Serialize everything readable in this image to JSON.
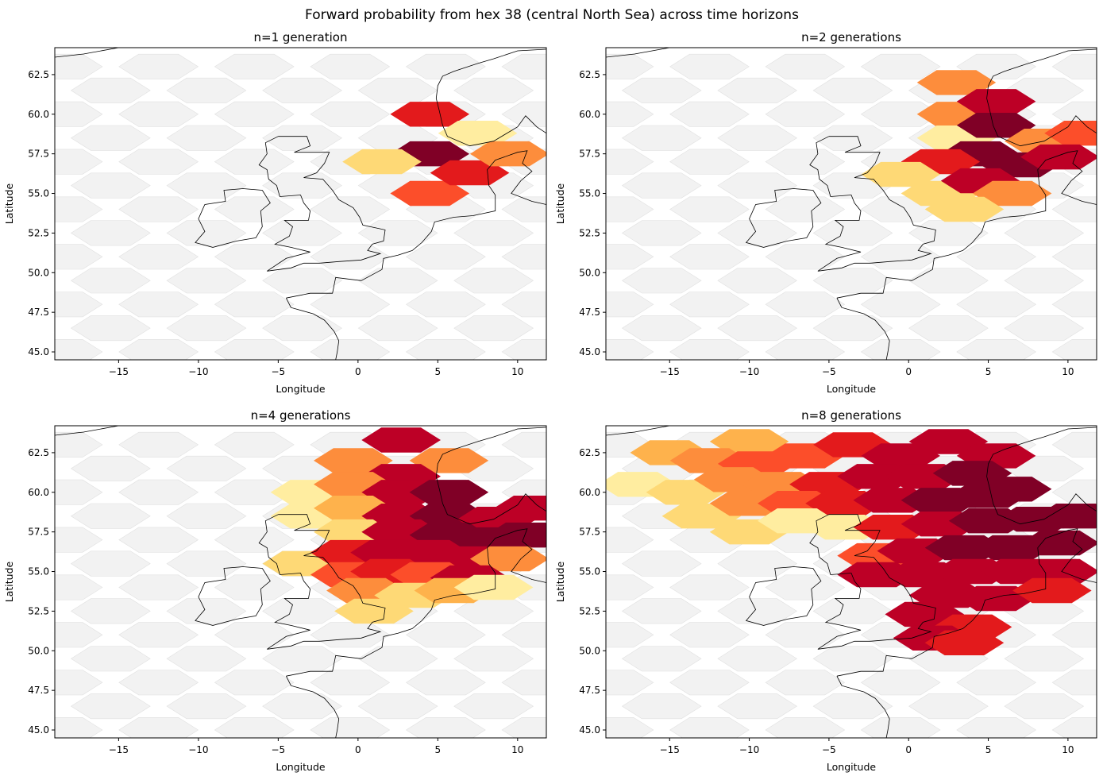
{
  "figure": {
    "title": "Forward probability from hex 38 (central North Sea) across time horizons",
    "colors": {
      "background_hex": "#f2f2f2",
      "background_edge": "#e0e0e0",
      "coast": "#000000",
      "colormap": [
        "#ffffcc",
        "#ffeda0",
        "#fed976",
        "#feb24c",
        "#fd8d3c",
        "#fc4e2a",
        "#e31a1c",
        "#bd0026",
        "#800026"
      ]
    }
  },
  "chart_data": [
    {
      "type": "heatmap",
      "title": "n=1 generation",
      "xlabel": "Longitude",
      "ylabel": "Latitude",
      "xlim": [
        -19,
        11.8
      ],
      "ylim": [
        44.5,
        64.2
      ],
      "xticks": [
        "−15",
        "−10",
        "−5",
        "0",
        "5",
        "10"
      ],
      "yticks": [
        "45.0",
        "47.5",
        "50.0",
        "52.5",
        "55.0",
        "57.5",
        "60.0",
        "62.5"
      ],
      "cells": [
        {
          "lon": 4.5,
          "lat": 57.5,
          "p": 1.0
        },
        {
          "lon": 4.5,
          "lat": 60.0,
          "p": 0.8
        },
        {
          "lon": 7.5,
          "lat": 58.8,
          "p": 0.12
        },
        {
          "lon": 1.5,
          "lat": 57.0,
          "p": 0.3
        },
        {
          "lon": 4.5,
          "lat": 55.0,
          "p": 0.6
        },
        {
          "lon": 7.0,
          "lat": 56.3,
          "p": 0.75
        },
        {
          "lon": 9.5,
          "lat": 57.5,
          "p": 0.5
        }
      ]
    },
    {
      "type": "heatmap",
      "title": "n=2 generations",
      "xlabel": "Longitude",
      "ylabel": "Latitude",
      "xlim": [
        -19,
        11.8
      ],
      "ylim": [
        44.5,
        64.2
      ],
      "xticks": [
        "−15",
        "−10",
        "−5",
        "0",
        "5",
        "10"
      ],
      "yticks": [
        "45.0",
        "47.5",
        "50.0",
        "52.5",
        "55.0",
        "57.5",
        "60.0",
        "62.5"
      ],
      "cells": [
        {
          "lon": 3.0,
          "lat": 62.0,
          "p": 0.45
        },
        {
          "lon": 3.0,
          "lat": 60.0,
          "p": 0.5
        },
        {
          "lon": 5.5,
          "lat": 60.8,
          "p": 0.85
        },
        {
          "lon": 3.0,
          "lat": 58.5,
          "p": 0.15
        },
        {
          "lon": 5.5,
          "lat": 59.3,
          "p": 0.95
        },
        {
          "lon": 8.5,
          "lat": 58.3,
          "p": 0.55
        },
        {
          "lon": 11.0,
          "lat": 58.8,
          "p": 0.65
        },
        {
          "lon": 4.5,
          "lat": 57.5,
          "p": 1.0
        },
        {
          "lon": 2.0,
          "lat": 57.0,
          "p": 0.8
        },
        {
          "lon": 7.0,
          "lat": 56.8,
          "p": 0.97
        },
        {
          "lon": 9.5,
          "lat": 57.3,
          "p": 0.92
        },
        {
          "lon": -0.5,
          "lat": 56.2,
          "p": 0.3
        },
        {
          "lon": 2.0,
          "lat": 55.0,
          "p": 0.3
        },
        {
          "lon": 4.5,
          "lat": 55.8,
          "p": 0.88
        },
        {
          "lon": 6.5,
          "lat": 55.0,
          "p": 0.45
        },
        {
          "lon": 3.5,
          "lat": 54.0,
          "p": 0.25
        }
      ]
    },
    {
      "type": "heatmap",
      "title": "n=4 generations",
      "xlabel": "Longitude",
      "ylabel": "Latitude",
      "xlim": [
        -19,
        11.8
      ],
      "ylim": [
        44.5,
        64.2
      ],
      "xticks": [
        "−15",
        "−10",
        "−5",
        "0",
        "5",
        "10"
      ],
      "yticks": [
        "45.0",
        "47.5",
        "50.0",
        "52.5",
        "55.0",
        "57.5",
        "60.0",
        "62.5"
      ],
      "cells": [
        {
          "lon": 2.7,
          "lat": 63.3,
          "p": 0.82
        },
        {
          "lon": -0.3,
          "lat": 62.0,
          "p": 0.45
        },
        {
          "lon": 5.7,
          "lat": 62.0,
          "p": 0.45
        },
        {
          "lon": 2.7,
          "lat": 61.0,
          "p": 0.92
        },
        {
          "lon": -3.0,
          "lat": 60.0,
          "p": 0.1
        },
        {
          "lon": -0.3,
          "lat": 60.5,
          "p": 0.5
        },
        {
          "lon": 2.7,
          "lat": 60.0,
          "p": 0.85
        },
        {
          "lon": 5.7,
          "lat": 60.0,
          "p": 0.95
        },
        {
          "lon": -3.0,
          "lat": 58.5,
          "p": 0.12
        },
        {
          "lon": -0.3,
          "lat": 59.0,
          "p": 0.4
        },
        {
          "lon": 2.7,
          "lat": 58.5,
          "p": 0.9
        },
        {
          "lon": 5.7,
          "lat": 58.5,
          "p": 0.95
        },
        {
          "lon": 8.7,
          "lat": 58.3,
          "p": 0.9
        },
        {
          "lon": 11.0,
          "lat": 59.0,
          "p": 0.92
        },
        {
          "lon": -0.3,
          "lat": 57.5,
          "p": 0.3
        },
        {
          "lon": 2.7,
          "lat": 57.5,
          "p": 0.9
        },
        {
          "lon": 5.7,
          "lat": 57.3,
          "p": 0.95
        },
        {
          "lon": 8.7,
          "lat": 57.0,
          "p": 0.95
        },
        {
          "lon": 10.5,
          "lat": 57.3,
          "p": 1.0
        },
        {
          "lon": -3.5,
          "lat": 55.5,
          "p": 0.3
        },
        {
          "lon": -0.5,
          "lat": 56.2,
          "p": 0.75
        },
        {
          "lon": 2.0,
          "lat": 56.2,
          "p": 0.9
        },
        {
          "lon": 4.5,
          "lat": 56.2,
          "p": 0.9
        },
        {
          "lon": 7.0,
          "lat": 55.8,
          "p": 0.9
        },
        {
          "lon": 9.5,
          "lat": 55.8,
          "p": 0.5
        },
        {
          "lon": -0.5,
          "lat": 54.8,
          "p": 0.6
        },
        {
          "lon": 2.0,
          "lat": 55.0,
          "p": 0.7
        },
        {
          "lon": 4.5,
          "lat": 54.8,
          "p": 0.6
        },
        {
          "lon": 7.0,
          "lat": 54.6,
          "p": 0.85
        },
        {
          "lon": 0.5,
          "lat": 53.8,
          "p": 0.45
        },
        {
          "lon": 3.5,
          "lat": 53.5,
          "p": 0.2
        },
        {
          "lon": 6.0,
          "lat": 53.8,
          "p": 0.4
        },
        {
          "lon": 8.5,
          "lat": 54.0,
          "p": 0.15
        },
        {
          "lon": 1.0,
          "lat": 52.5,
          "p": 0.25
        }
      ]
    },
    {
      "type": "heatmap",
      "title": "n=8 generations",
      "xlabel": "Longitude",
      "ylabel": "Latitude",
      "xlim": [
        -19,
        11.8
      ],
      "ylim": [
        44.5,
        64.2
      ],
      "xticks": [
        "−15",
        "−10",
        "−5",
        "0",
        "5",
        "10"
      ],
      "yticks": [
        "45.0",
        "47.5",
        "50.0",
        "52.5",
        "55.0",
        "57.5",
        "60.0",
        "62.5"
      ],
      "cells": [
        {
          "lon": -15.0,
          "lat": 62.5,
          "p": 0.35
        },
        {
          "lon": -10.0,
          "lat": 63.2,
          "p": 0.4
        },
        {
          "lon": -6.5,
          "lat": 62.3,
          "p": 0.65
        },
        {
          "lon": -3.5,
          "lat": 63.0,
          "p": 0.72
        },
        {
          "lon": -0.5,
          "lat": 62.3,
          "p": 0.85
        },
        {
          "lon": 2.5,
          "lat": 63.2,
          "p": 0.85
        },
        {
          "lon": 5.5,
          "lat": 62.3,
          "p": 0.88
        },
        {
          "lon": -17.0,
          "lat": 60.5,
          "p": 0.1
        },
        {
          "lon": -12.5,
          "lat": 62.0,
          "p": 0.48
        },
        {
          "lon": -9.5,
          "lat": 61.8,
          "p": 0.6
        },
        {
          "lon": -14.0,
          "lat": 60.0,
          "p": 0.2
        },
        {
          "lon": -11.0,
          "lat": 60.8,
          "p": 0.48
        },
        {
          "lon": -8.0,
          "lat": 60.5,
          "p": 0.55
        },
        {
          "lon": -5.0,
          "lat": 60.5,
          "p": 0.72
        },
        {
          "lon": -2.0,
          "lat": 61.0,
          "p": 0.82
        },
        {
          "lon": 1.0,
          "lat": 61.0,
          "p": 0.88
        },
        {
          "lon": 4.0,
          "lat": 61.2,
          "p": 0.96
        },
        {
          "lon": 6.5,
          "lat": 60.2,
          "p": 0.94
        },
        {
          "lon": -13.0,
          "lat": 58.5,
          "p": 0.22
        },
        {
          "lon": -10.0,
          "lat": 59.3,
          "p": 0.45
        },
        {
          "lon": -7.0,
          "lat": 59.3,
          "p": 0.6
        },
        {
          "lon": -4.0,
          "lat": 59.3,
          "p": 0.72
        },
        {
          "lon": -1.0,
          "lat": 59.5,
          "p": 0.85
        },
        {
          "lon": 2.0,
          "lat": 59.5,
          "p": 0.94
        },
        {
          "lon": 5.0,
          "lat": 59.8,
          "p": 0.96
        },
        {
          "lon": -10.0,
          "lat": 57.5,
          "p": 0.22
        },
        {
          "lon": -7.0,
          "lat": 58.2,
          "p": 0.15
        },
        {
          "lon": -4.0,
          "lat": 57.8,
          "p": 0.15
        },
        {
          "lon": -2.0,
          "lat": 56.0,
          "p": 0.58
        },
        {
          "lon": -1.0,
          "lat": 57.8,
          "p": 0.8
        },
        {
          "lon": 2.0,
          "lat": 58.0,
          "p": 0.92
        },
        {
          "lon": 5.0,
          "lat": 58.2,
          "p": 0.96
        },
        {
          "lon": 8.0,
          "lat": 58.3,
          "p": 0.94
        },
        {
          "lon": 10.5,
          "lat": 58.5,
          "p": 0.97
        },
        {
          "lon": 0.5,
          "lat": 56.3,
          "p": 0.92
        },
        {
          "lon": 3.5,
          "lat": 56.5,
          "p": 0.94
        },
        {
          "lon": 6.5,
          "lat": 56.5,
          "p": 0.94
        },
        {
          "lon": 9.5,
          "lat": 56.8,
          "p": 0.97
        },
        {
          "lon": -2.0,
          "lat": 54.8,
          "p": 0.82
        },
        {
          "lon": 1.0,
          "lat": 54.8,
          "p": 0.9
        },
        {
          "lon": 4.0,
          "lat": 55.0,
          "p": 0.92
        },
        {
          "lon": 7.0,
          "lat": 55.0,
          "p": 0.92
        },
        {
          "lon": 9.5,
          "lat": 55.0,
          "p": 0.82
        },
        {
          "lon": 2.5,
          "lat": 53.5,
          "p": 0.86
        },
        {
          "lon": 5.5,
          "lat": 53.3,
          "p": 0.82
        },
        {
          "lon": 9.0,
          "lat": 53.8,
          "p": 0.78
        },
        {
          "lon": 1.0,
          "lat": 52.3,
          "p": 0.82
        },
        {
          "lon": 4.0,
          "lat": 51.5,
          "p": 0.78
        },
        {
          "lon": 1.5,
          "lat": 50.8,
          "p": 0.82
        },
        {
          "lon": 3.5,
          "lat": 50.5,
          "p": 0.72
        }
      ]
    }
  ]
}
